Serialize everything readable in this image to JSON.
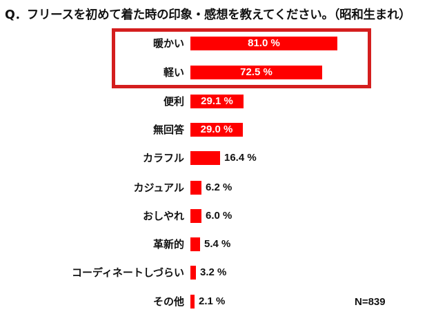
{
  "title": "Q．フリースを初めて着た時の印象・感想を教えてください。（昭和生まれ）",
  "sample_size": "N=839",
  "colors": {
    "bar": "#ff0000",
    "highlight_border": "#d41e1e"
  },
  "chart_data": {
    "type": "bar",
    "orientation": "horizontal",
    "title": "Q．フリースを初めて着た時の印象・感想を教えてください。（昭和生まれ）",
    "categories": [
      "暖かい",
      "軽い",
      "便利",
      "無回答",
      "カラフル",
      "カジュアル",
      "おしやれ",
      "革新的",
      "コーディネートしづらい",
      "その他"
    ],
    "values": [
      81.0,
      72.5,
      29.1,
      29.0,
      16.4,
      6.2,
      6.0,
      5.4,
      3.2,
      2.1
    ],
    "unit": "%",
    "xlabel": "",
    "ylabel": "",
    "grid": false,
    "legend": null,
    "highlighted": [
      "暖かい",
      "軽い"
    ],
    "annotation": "N=839"
  },
  "rows": [
    {
      "label": "暖かい",
      "value_text": "81.0 %"
    },
    {
      "label": "軽い",
      "value_text": "72.5 %"
    },
    {
      "label": "便利",
      "value_text": "29.1 %"
    },
    {
      "label": "無回答",
      "value_text": "29.0 %"
    },
    {
      "label": "カラフル",
      "value_text": "16.4 %"
    },
    {
      "label": "カジュアル",
      "value_text": "6.2 %"
    },
    {
      "label": "おしやれ",
      "value_text": "6.0 %"
    },
    {
      "label": "革新的",
      "value_text": "5.4 %"
    },
    {
      "label": "コーディネートしづらい",
      "value_text": "3.2 %"
    },
    {
      "label": "その他",
      "value_text": "2.1 %"
    }
  ]
}
